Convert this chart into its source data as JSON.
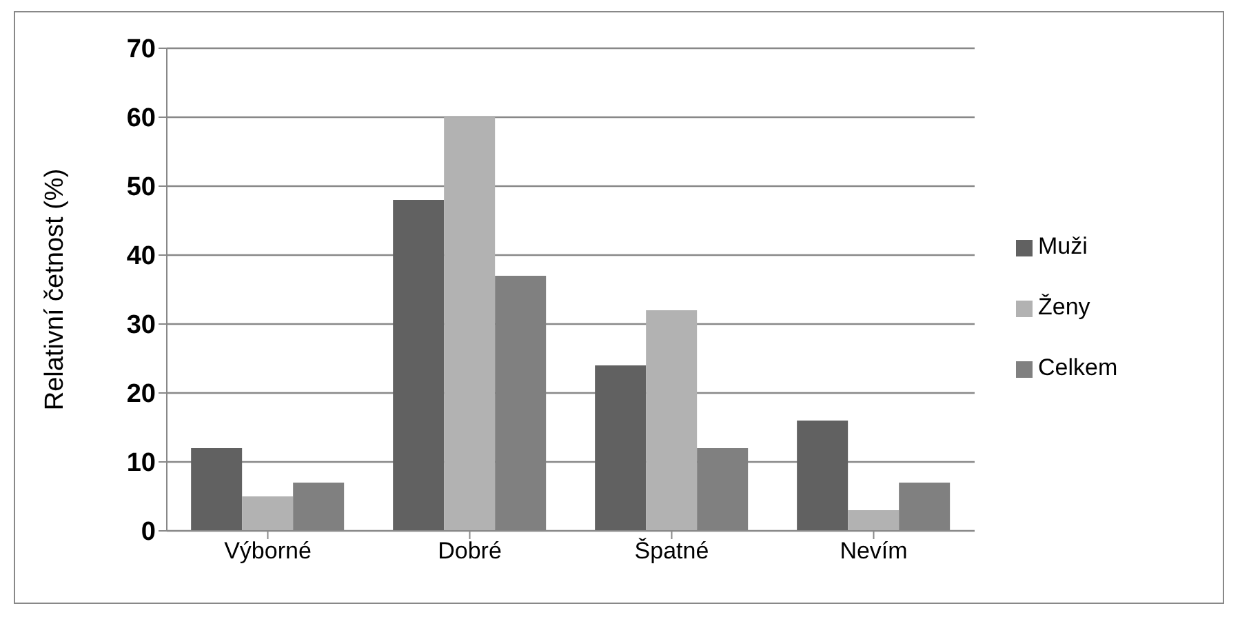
{
  "chart_data": {
    "type": "bar",
    "ylabel": "Relativní četnost (%)",
    "categories": [
      "Výborné",
      "Dobré",
      "Špatné",
      "Nevím"
    ],
    "series": [
      {
        "name": "Muži",
        "color": "#616161",
        "values": [
          12,
          48,
          24,
          16
        ]
      },
      {
        "name": "Ženy",
        "color": "#b2b2b2",
        "values": [
          5,
          60,
          32,
          3
        ]
      },
      {
        "name": "Celkem",
        "color": "#808080",
        "values": [
          7,
          37,
          12,
          7
        ]
      }
    ],
    "ylim": [
      0,
      70
    ],
    "yticks": [
      0,
      10,
      20,
      30,
      40,
      50,
      60,
      70
    ],
    "grid": "y",
    "legend": "right"
  }
}
